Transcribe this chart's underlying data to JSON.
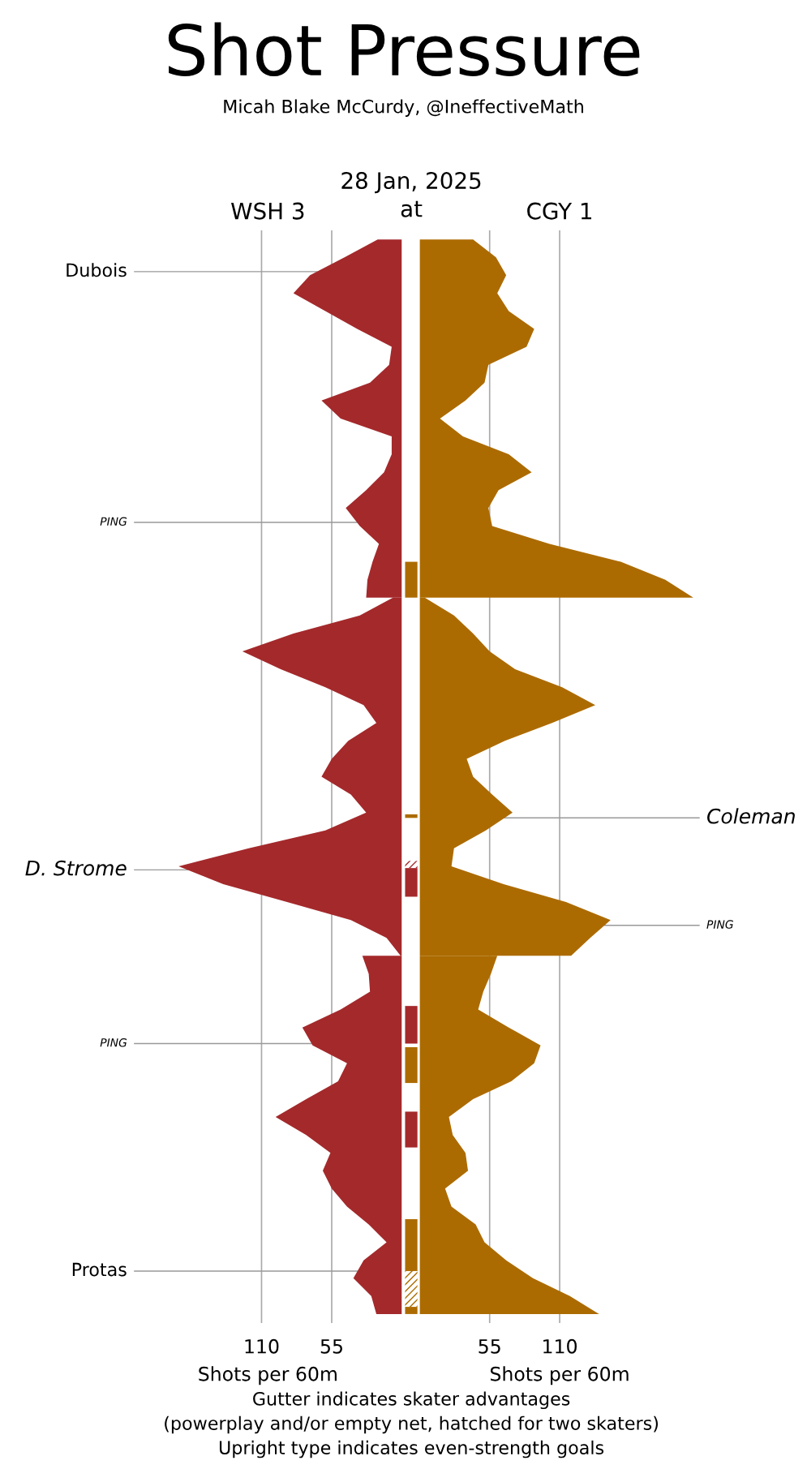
{
  "chart_data": [
    {
      "type": "area",
      "orientation": "horizontal",
      "title": "Shot Pressure",
      "subtitle": "Micah Blake McCurdy, @IneffectiveMath",
      "xlabel": "Shots per 60m",
      "annotations": [
        "28 Jan, 2025",
        "at",
        "Dubois",
        "PING",
        "D. Strome",
        "PING",
        "Protas"
      ],
      "categories": [
        null,
        null,
        null,
        null,
        null,
        null,
        null,
        null,
        null,
        null,
        null,
        null,
        null,
        null,
        null,
        null,
        null,
        null,
        null,
        null,
        null,
        null,
        null,
        null,
        null,
        null,
        null,
        null,
        null,
        null,
        null,
        null,
        null,
        null,
        null,
        null,
        null,
        null,
        null,
        null,
        null,
        null,
        null,
        null,
        null,
        null,
        null,
        null,
        null,
        null,
        null,
        null,
        null,
        null,
        null,
        null,
        null,
        null,
        null,
        null,
        null
      ],
      "series": [
        {
          "name": "WSH 3",
          "color": "#a4292b",
          "values": [
            19,
            45,
            72,
            85,
            60,
            35,
            8,
            10,
            25,
            63,
            48,
            8,
            8,
            14,
            28,
            44,
            33,
            18,
            23,
            27,
            28,
            null,
            null,
            null,
            null,
            null,
            null,
            null,
            null,
            null,
            null,
            null,
            null,
            null,
            null,
            null,
            null,
            null,
            null,
            null,
            null,
            null,
            null,
            null,
            null,
            null,
            null,
            null,
            null,
            null,
            null,
            null,
            null,
            null,
            null,
            null,
            null,
            null,
            null,
            null,
            null
          ]
        },
        {
          "color": "#a4292b",
          "values": [
            null,
            null,
            null,
            null,
            null,
            null,
            null,
            null,
            null,
            null,
            null,
            null,
            null,
            null,
            null,
            null,
            null,
            null,
            null,
            null,
            7,
            33,
            85,
            125,
            95,
            60,
            30,
            20,
            42,
            55,
            63,
            40,
            28,
            60,
            120,
            175,
            140,
            90,
            40,
            12,
            1,
            null,
            null,
            null,
            null,
            null,
            null,
            null,
            null,
            null,
            null,
            null,
            null,
            null,
            null,
            null,
            null,
            null,
            null,
            null,
            null
          ]
        },
        {
          "color": "#a4292b",
          "values": [
            null,
            null,
            null,
            null,
            null,
            null,
            null,
            null,
            null,
            null,
            null,
            null,
            null,
            null,
            null,
            null,
            null,
            null,
            null,
            null,
            null,
            null,
            null,
            null,
            null,
            null,
            null,
            null,
            null,
            null,
            null,
            null,
            null,
            null,
            null,
            null,
            null,
            null,
            null,
            null,
            31,
            26,
            25,
            48,
            78,
            70,
            43,
            50,
            75,
            99,
            75,
            56,
            62,
            55,
            43,
            26,
            12,
            30,
            38,
            24,
            20
          ]
        }
      ],
      "xlim": [
        210,
        0
      ],
      "xticks": [
        110,
        55
      ],
      "grid": "x"
    },
    {
      "type": "area",
      "orientation": "horizontal",
      "xlabel": "Shots per 60m",
      "annotations": [
        "Coleman",
        "PING",
        "Gutter indicates skater advantages",
        "(powerplay and/or empty net, hatched for two skaters)",
        "Upright type indicates even-strength goals"
      ],
      "categories": [
        null,
        null,
        null,
        null,
        null,
        null,
        null,
        null,
        null,
        null,
        null,
        null,
        null,
        null,
        null,
        null,
        null,
        null,
        null,
        null,
        null,
        null,
        null,
        null,
        null,
        null,
        null,
        null,
        null,
        null,
        null,
        null,
        null,
        null,
        null,
        null,
        null,
        null,
        null,
        null,
        null,
        null,
        null,
        null,
        null,
        null,
        null,
        null,
        null,
        null,
        null,
        null,
        null,
        null,
        null,
        null,
        null,
        null,
        null,
        null,
        null
      ],
      "series": [
        {
          "name": "CGY 1",
          "color": "#ac6b00",
          "values": [
            42,
            60,
            68,
            61,
            70,
            90,
            84,
            54,
            51,
            36,
            16,
            34,
            70,
            88,
            62,
            54,
            57,
            102,
            158,
            193,
            215,
            null,
            null,
            null,
            null,
            null,
            null,
            null,
            null,
            null,
            null,
            null,
            null,
            null,
            null,
            null,
            null,
            null,
            null,
            null,
            null,
            null,
            null,
            null,
            null,
            null,
            null,
            null,
            null,
            null,
            null,
            null,
            null,
            null,
            null,
            null,
            null,
            null,
            null,
            null,
            null
          ]
        },
        {
          "color": "#ac6b00",
          "values": [
            null,
            null,
            null,
            null,
            null,
            null,
            null,
            null,
            null,
            null,
            null,
            null,
            null,
            null,
            null,
            null,
            null,
            null,
            null,
            null,
            4,
            27,
            42,
            55,
            75,
            112,
            138,
            104,
            67,
            37,
            42,
            57,
            73,
            52,
            27,
            25,
            66,
            115,
            150,
            134,
            119,
            null,
            null,
            null,
            null,
            null,
            null,
            null,
            null,
            null,
            null,
            null,
            null,
            null,
            null,
            null,
            null,
            null,
            null,
            null,
            null
          ]
        },
        {
          "color": "#ac6b00",
          "values": [
            null,
            null,
            null,
            null,
            null,
            null,
            null,
            null,
            null,
            null,
            null,
            null,
            null,
            null,
            null,
            null,
            null,
            null,
            null,
            null,
            null,
            null,
            null,
            null,
            null,
            null,
            null,
            null,
            null,
            null,
            null,
            null,
            null,
            null,
            null,
            null,
            null,
            null,
            null,
            null,
            61,
            56,
            50,
            46,
            70,
            95,
            90,
            72,
            42,
            23,
            26,
            36,
            38,
            20,
            25,
            44,
            51,
            68,
            89,
            118,
            141
          ]
        }
      ],
      "xlim": [
        0,
        220
      ],
      "xticks": [
        55,
        110
      ],
      "grid": "x"
    }
  ]
}
